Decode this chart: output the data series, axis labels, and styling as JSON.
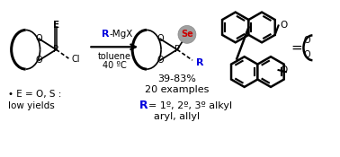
{
  "background": "#ffffff",
  "black": "#000000",
  "blue": "#0000dd",
  "red": "#cc0000",
  "gray_se": "#a0a0a0",
  "gray_se_dark": "#888888",
  "yield_text": "39-83%",
  "examples_text": "20 examples",
  "note1": "• E = O, S :",
  "note2": "low yields",
  "toluene": "toluene",
  "temp": "40 ºC",
  "R_sup1": "1º",
  "R_sup2": "2º",
  "R_sup3": "3º",
  "alkyl": " alkyl",
  "aryl_allyl": "aryl, allyl"
}
